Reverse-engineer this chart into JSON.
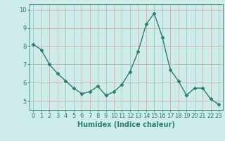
{
  "x": [
    0,
    1,
    2,
    3,
    4,
    5,
    6,
    7,
    8,
    9,
    10,
    11,
    12,
    13,
    14,
    15,
    16,
    17,
    18,
    19,
    20,
    21,
    22,
    23
  ],
  "y": [
    8.1,
    7.8,
    7.0,
    6.5,
    6.1,
    5.7,
    5.4,
    5.5,
    5.8,
    5.3,
    5.5,
    5.9,
    6.6,
    7.7,
    9.2,
    9.8,
    8.5,
    6.7,
    6.1,
    5.3,
    5.7,
    5.7,
    5.1,
    4.8
  ],
  "line_color": "#2e7d6e",
  "marker": "D",
  "marker_size": 2.5,
  "bg_color": "#ceecea",
  "grid_x_color": "#c8a8a8",
  "grid_y_color": "#c8a8a8",
  "xlabel": "Humidex (Indice chaleur)",
  "xlim": [
    -0.5,
    23.5
  ],
  "ylim": [
    4.5,
    10.3
  ],
  "yticks": [
    5,
    6,
    7,
    8,
    9,
    10
  ],
  "xticks": [
    0,
    1,
    2,
    3,
    4,
    5,
    6,
    7,
    8,
    9,
    10,
    11,
    12,
    13,
    14,
    15,
    16,
    17,
    18,
    19,
    20,
    21,
    22,
    23
  ],
  "xlabel_fontsize": 7,
  "tick_fontsize": 6,
  "line_width": 1.0
}
